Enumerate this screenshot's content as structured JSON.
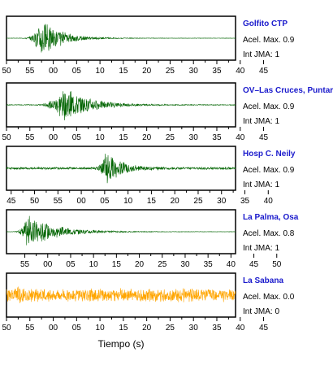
{
  "chart_data": {
    "type": "line",
    "xlabel": "Tiempo (s)",
    "colors": {
      "normal": "#006400",
      "alert": "#ffa500",
      "name": "#1a1acc"
    },
    "panels": [
      {
        "station": "Golfito CTP",
        "accel_label": "Acel. Max. 0.9",
        "jma_label": "Int JMA: 1",
        "color": "#006400",
        "ticks": [
          "50",
          "55",
          "00",
          "05",
          "10",
          "15",
          "20",
          "25",
          "30",
          "35",
          "40",
          "45"
        ],
        "x_range": [
          50,
          99
        ],
        "burst_center": 58,
        "burst_rise": 2,
        "burst_decay": 4,
        "peak": 0.95,
        "noise": 0.01,
        "seed": 3
      },
      {
        "station": "OV–Las Cruces, Puntar",
        "accel_label": "Acel. Max. 0.9",
        "jma_label": "Int JMA: 1",
        "color": "#006400",
        "ticks": [
          "50",
          "55",
          "00",
          "05",
          "10",
          "15",
          "20",
          "25",
          "30",
          "35",
          "40",
          "45"
        ],
        "x_range": [
          50,
          99
        ],
        "burst_center": 63,
        "burst_rise": 3,
        "burst_decay": 5,
        "peak": 0.9,
        "noise": 0.02,
        "seed": 7
      },
      {
        "station": "Hosp C. Neily",
        "accel_label": "Acel. Max. 0.9",
        "jma_label": "Int JMA: 1",
        "color": "#006400",
        "ticks": [
          "45",
          "50",
          "55",
          "00",
          "05",
          "10",
          "15",
          "20",
          "25",
          "30",
          "35",
          "40"
        ],
        "x_range": [
          44,
          93
        ],
        "burst_center": 65.5,
        "burst_rise": 1.2,
        "burst_decay": 3,
        "peak": 0.95,
        "noise": 0.06,
        "seed": 11
      },
      {
        "station": "La Palma, Osa",
        "accel_label": "Acel. Max. 0.8",
        "jma_label": "Int JMA: 1",
        "color": "#006400",
        "ticks": [
          "55",
          "00",
          "05",
          "10",
          "15",
          "20",
          "25",
          "30",
          "35",
          "40",
          "45",
          "50"
        ],
        "x_range": [
          51,
          101
        ],
        "burst_center": 56,
        "burst_rise": 1.5,
        "burst_decay": 6,
        "peak": 0.85,
        "noise": 0.01,
        "seed": 17
      },
      {
        "station": "La Sabana",
        "accel_label": "Acel. Max. 0.0",
        "jma_label": "Int JMA: 0",
        "color": "#ffa500",
        "ticks": [
          "50",
          "55",
          "00",
          "05",
          "10",
          "15",
          "20",
          "25",
          "30",
          "35",
          "40",
          "45"
        ],
        "x_range": [
          50,
          99
        ],
        "burst_center": 52.5,
        "burst_rise": 0.5,
        "burst_decay": 1.5,
        "peak": 0.6,
        "noise": 0.35,
        "seed": 23
      }
    ]
  }
}
